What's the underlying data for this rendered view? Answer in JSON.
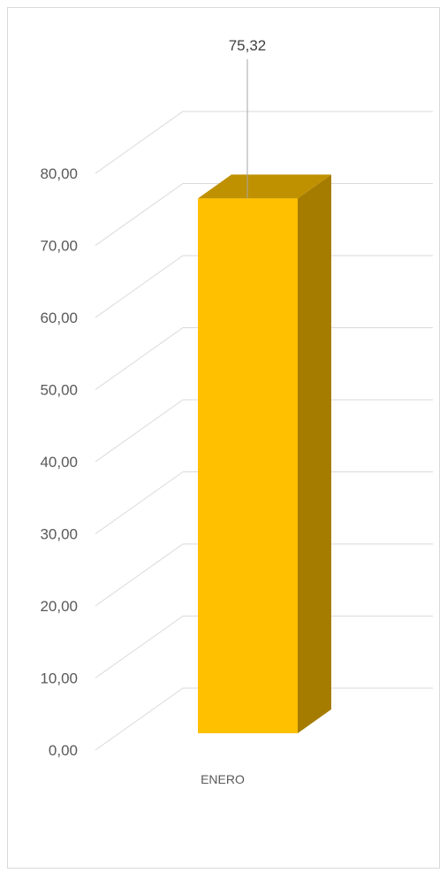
{
  "chart_data": {
    "type": "bar",
    "style": "3d-column",
    "categories": [
      "ENERO"
    ],
    "series": [
      {
        "values": [
          75.32
        ],
        "color": "#FFC000",
        "side_color": "#A67C00",
        "top_color": "#BF9000"
      }
    ],
    "data_labels": [
      "75,32"
    ],
    "ylim": [
      0,
      80
    ],
    "y_ticks": [
      0,
      10,
      20,
      30,
      40,
      50,
      60,
      70,
      80
    ],
    "y_tick_labels": [
      "0,00",
      "10,00",
      "20,00",
      "30,00",
      "40,00",
      "50,00",
      "60,00",
      "70,00",
      "80,00"
    ],
    "grid": true,
    "legend": "none",
    "title": "",
    "xlabel": "",
    "ylabel": ""
  }
}
